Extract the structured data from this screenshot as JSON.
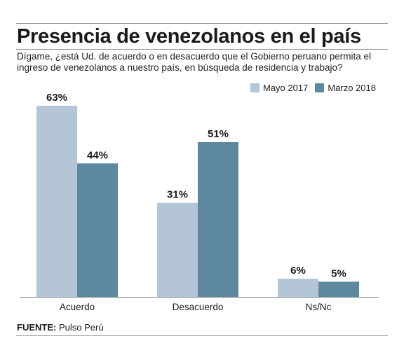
{
  "title": "Presencia de venezolanos en el país",
  "subtitle": "Dígame, ¿está Ud. de acuerdo o en desacuerdo que el Gobierno peruano permita el ingreso de venezolanos a nuestro país, en búsqueda de residencia y trabajo?",
  "source_label": "FUENTE:",
  "source_text": "Pulso Perú",
  "chart_data": {
    "type": "bar",
    "categories": [
      "Acuerdo",
      "Desacuerdo",
      "Ns/Nc"
    ],
    "series": [
      {
        "name": "Mayo 2017",
        "values": [
          63,
          31,
          6
        ],
        "color": "#b4c5d6"
      },
      {
        "name": "Marzo 2018",
        "values": [
          44,
          51,
          5
        ],
        "color": "#5d889f"
      }
    ],
    "value_suffix": "%",
    "ylim": [
      0,
      63
    ],
    "grid": false,
    "legend": "top-right"
  }
}
